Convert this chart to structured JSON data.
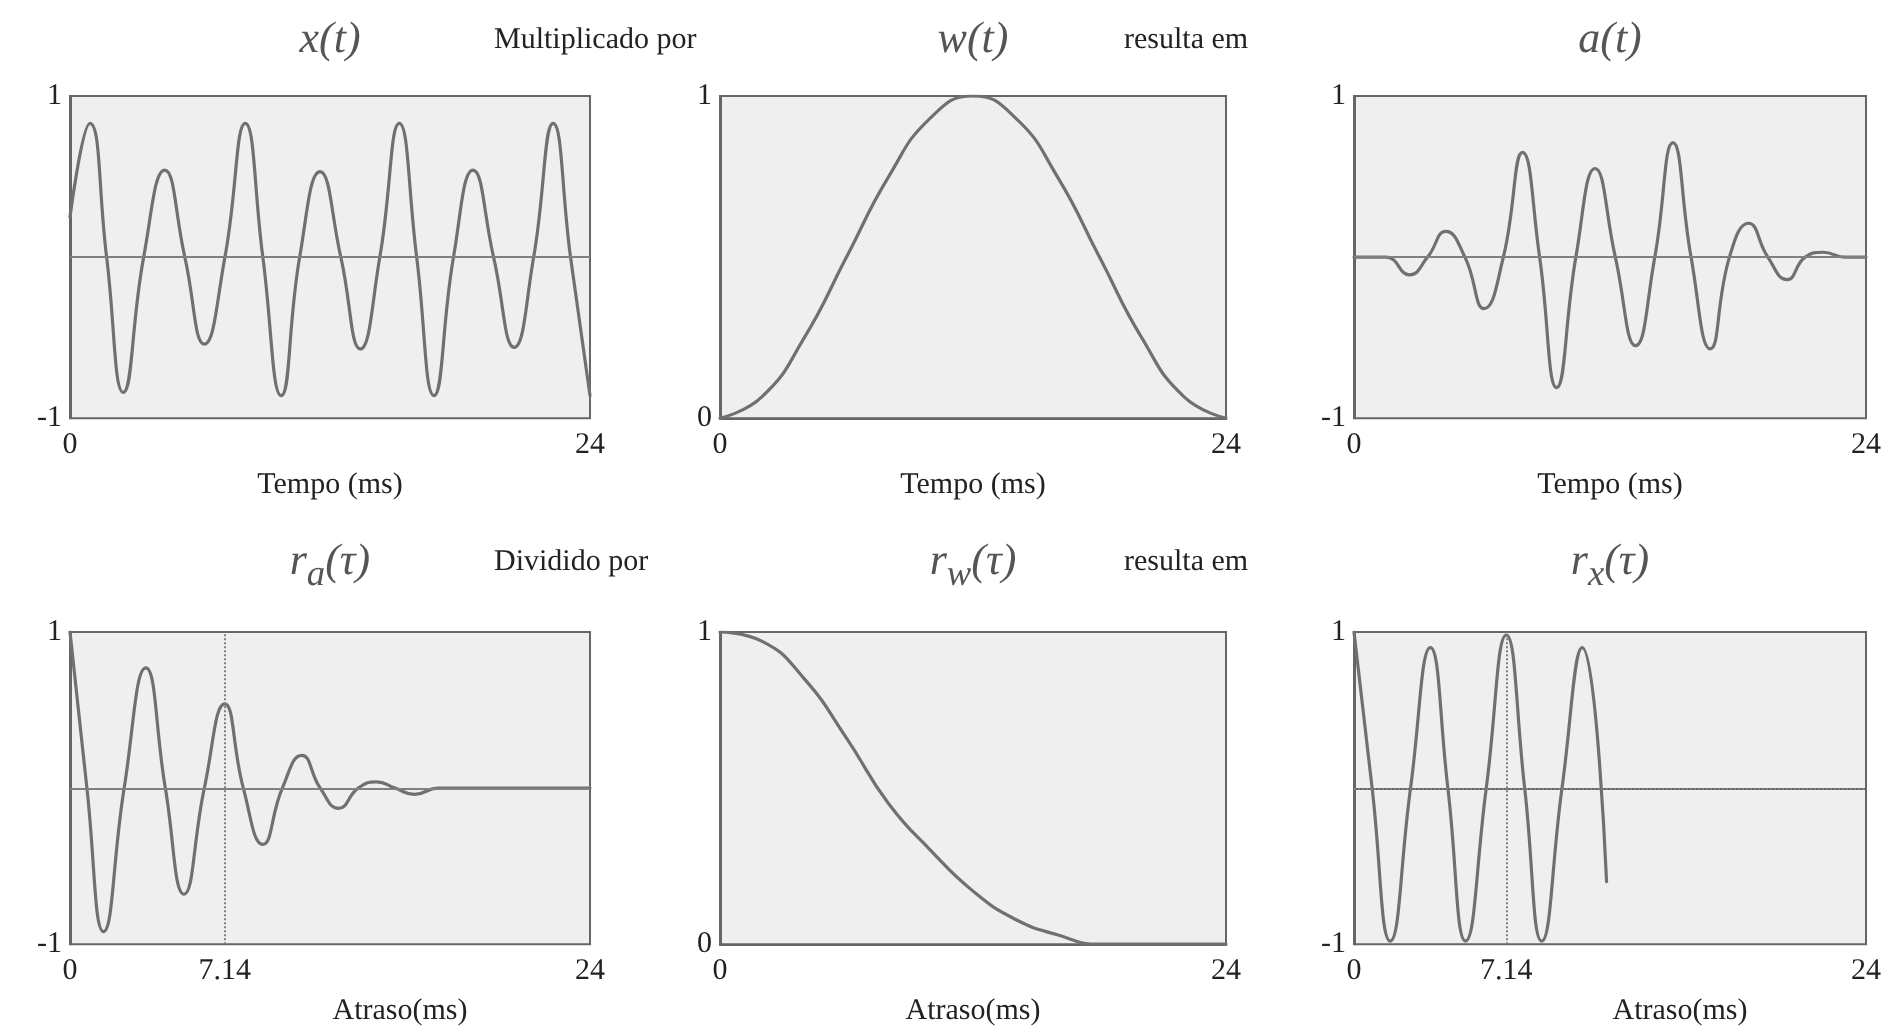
{
  "chart_data": [
    {
      "type": "line",
      "title": "x(t)",
      "xlabel": "Tempo (ms)",
      "color": "#707070",
      "xlim": [
        0,
        24
      ],
      "ylim": [
        -1,
        1
      ],
      "xticks": [
        0,
        24
      ],
      "yticks": [
        -1,
        1
      ],
      "x": [
        0,
        0.92,
        1.69,
        2.46,
        3.4,
        4.37,
        5.3,
        6.2,
        7.15,
        8.09,
        8.9,
        9.75,
        10.6,
        11.54,
        12.5,
        13.4,
        14.3,
        15.2,
        16.0,
        16.8,
        17.7,
        18.6,
        19.55,
        20.5,
        21.4,
        22.3,
        23.1,
        24
      ],
      "values": [
        0.25,
        0.83,
        0,
        -0.84,
        0,
        0.54,
        0,
        -0.54,
        0,
        0.83,
        0,
        -0.86,
        0,
        0.53,
        0,
        -0.57,
        0,
        0.83,
        0,
        -0.86,
        0,
        0.54,
        0,
        -0.56,
        0,
        0.83,
        0,
        -0.86
      ],
      "ref_lines": [
        {
          "axis": "y",
          "value": 0,
          "color": "#808080",
          "line_style": "solid"
        }
      ]
    },
    {
      "type": "line",
      "title": "w(t)",
      "xlabel": "Tempo (ms)",
      "color": "#707070",
      "xlim": [
        0,
        24
      ],
      "ylim": [
        0,
        1
      ],
      "xticks": [
        0,
        24
      ],
      "yticks": [
        0,
        1
      ],
      "x": [
        0,
        2,
        4,
        6,
        8,
        10,
        12,
        14,
        16,
        18,
        20,
        22,
        24
      ],
      "values": [
        0,
        0.067,
        0.25,
        0.5,
        0.75,
        0.933,
        1,
        0.933,
        0.75,
        0.5,
        0.25,
        0.067,
        0
      ],
      "annotations": [
        "Multiplicado por"
      ]
    },
    {
      "type": "line",
      "title": "a(t)",
      "xlabel": "Tempo (ms)",
      "color": "#707070",
      "xlim": [
        0,
        24
      ],
      "ylim": [
        -1,
        1
      ],
      "xticks": [
        0,
        24
      ],
      "yticks": [
        -1,
        1
      ],
      "x": [
        0,
        1.5,
        2.6,
        3.45,
        4.3,
        5.2,
        6.1,
        7.0,
        7.9,
        8.7,
        9.5,
        10.4,
        11.3,
        12.25,
        13.2,
        14.1,
        14.95,
        15.8,
        16.7,
        17.6,
        18.5,
        19.4,
        20.3,
        21.15,
        22.0,
        23.0,
        24
      ],
      "values": [
        0,
        0,
        -0.11,
        0,
        0.16,
        0,
        -0.32,
        0,
        0.65,
        0,
        -0.81,
        0,
        0.55,
        0,
        -0.55,
        0,
        0.71,
        0,
        -0.57,
        0,
        0.21,
        0,
        -0.14,
        0,
        0.03,
        0,
        0
      ],
      "ref_lines": [
        {
          "axis": "y",
          "value": 0,
          "color": "#808080",
          "line_style": "solid"
        }
      ],
      "annotations": [
        "resulta em"
      ]
    },
    {
      "type": "line",
      "title": "r$_{a}$(τ)",
      "xlabel": "Atraso(ms)",
      "color": "#707070",
      "xlim": [
        0,
        24
      ],
      "ylim": [
        -1,
        1
      ],
      "xticks": [
        0,
        7.14,
        24
      ],
      "yticks": [
        -1,
        1
      ],
      "x": [
        0,
        0.78,
        1.55,
        2.5,
        3.5,
        4.4,
        5.26,
        6.2,
        7.14,
        8.0,
        8.9,
        9.8,
        10.7,
        11.55,
        12.4,
        13.3,
        14.15,
        15.0,
        15.9,
        17,
        18,
        20,
        22,
        24
      ],
      "values": [
        1,
        0,
        -0.92,
        0,
        0.77,
        0,
        -0.68,
        0,
        0.54,
        0,
        -0.36,
        0,
        0.21,
        0,
        -0.13,
        0,
        0.04,
        0,
        -0.04,
        0,
        0,
        0,
        0,
        0
      ],
      "ref_lines": [
        {
          "axis": "y",
          "value": 0,
          "color": "#808080",
          "line_style": "solid"
        },
        {
          "axis": "x",
          "value": 7.14,
          "color": "#808080",
          "line_style": "dotted"
        }
      ]
    },
    {
      "type": "line",
      "title": "r$_{w}$(τ)",
      "xlabel": "Atraso(ms)",
      "color": "#707070",
      "xlim": [
        0,
        24
      ],
      "ylim": [
        0,
        1
      ],
      "xticks": [
        0,
        24
      ],
      "yticks": [
        0,
        1
      ],
      "x": [
        0,
        2,
        4,
        6,
        8,
        10,
        12,
        14,
        16,
        18,
        20,
        22,
        24
      ],
      "values": [
        1,
        0.97,
        0.85,
        0.66,
        0.45,
        0.3,
        0.17,
        0.08,
        0.03,
        0,
        0,
        0,
        0
      ],
      "annotations": [
        "Dividido por"
      ]
    },
    {
      "type": "line",
      "title": "r$_{x}$(τ)",
      "xlabel": "Atraso(ms)",
      "color": "#707070",
      "xlim": [
        0,
        24
      ],
      "ylim": [
        -1,
        1
      ],
      "xticks": [
        0,
        7.14,
        24
      ],
      "yticks": [
        -1,
        1
      ],
      "x": [
        0,
        0.85,
        1.7,
        2.65,
        3.58,
        4.4,
        5.23,
        6.2,
        7.14,
        8.0,
        8.8,
        9.75,
        10.7,
        11.84
      ],
      "values": [
        1,
        0,
        -0.98,
        0,
        0.9,
        0,
        -0.98,
        0,
        0.98,
        0,
        -0.98,
        0,
        0.9,
        -0.6
      ],
      "ref_lines": [
        {
          "axis": "y",
          "value": 0,
          "color": "#808080",
          "line_style": "dotted"
        },
        {
          "axis": "x",
          "value": 7.14,
          "color": "#808080",
          "line_style": "dotted"
        }
      ],
      "annotations": [
        "resulta em"
      ]
    }
  ]
}
